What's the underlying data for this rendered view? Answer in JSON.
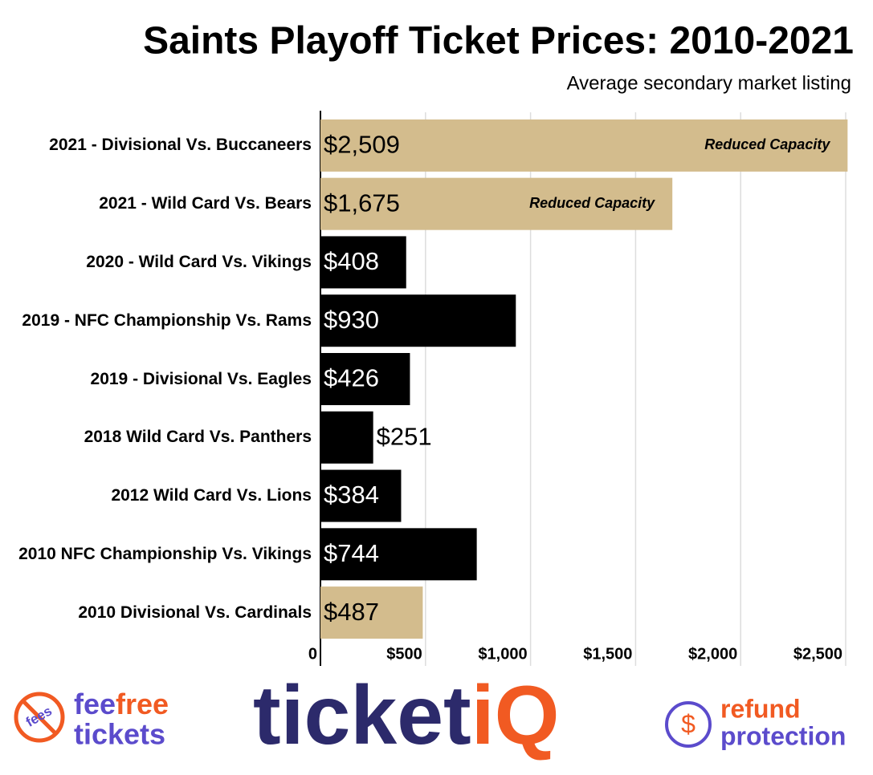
{
  "chart_data": {
    "type": "barh",
    "title": "Saints Playoff Ticket Prices: 2010-2021",
    "subtitle": "Average secondary market listing",
    "categories": [
      "2021 - Divisional Vs. Buccaneers",
      "2021 - Wild Card Vs. Bears",
      "2020 - Wild Card Vs. Vikings",
      "2019 - NFC Championship Vs. Rams",
      "2019 - Divisional Vs. Eagles",
      "2018 Wild Card Vs. Panthers",
      "2012 Wild Card Vs. Lions",
      "2010 NFC Championship Vs. Vikings",
      "2010 Divisional Vs. Cardinals"
    ],
    "values": [
      2509,
      1675,
      408,
      930,
      426,
      251,
      384,
      744,
      487
    ],
    "value_labels": [
      "$2,509",
      "$1,675",
      "$408",
      "$930",
      "$426",
      "$251",
      "$384",
      "$744",
      "$487"
    ],
    "colors": [
      "#d3bc8d",
      "#d3bc8d",
      "#000000",
      "#000000",
      "#000000",
      "#000000",
      "#000000",
      "#000000",
      "#d3bc8d"
    ],
    "bar_notes": [
      "Reduced Capacity",
      "Reduced Capacity",
      null,
      null,
      null,
      null,
      null,
      null,
      null
    ],
    "xlim": [
      0,
      2500
    ],
    "xticks": [
      0,
      {
        "value": 500,
        "label": "$500"
      },
      {
        "value": 1000,
        "label": "$1,000"
      },
      {
        "value": 1500,
        "label": "$1,500"
      },
      {
        "value": 2000,
        "label": "$2,000"
      },
      {
        "value": 2500,
        "label": "$2,500"
      }
    ],
    "grid": true
  },
  "footer": {
    "fees_icon": "fees",
    "fee": "fee",
    "free": "free",
    "tickets": "tickets",
    "brand_main": "ticket",
    "brand_accent": "iQ",
    "refund_icon": "$",
    "refund": "refund",
    "protection": "protection"
  }
}
